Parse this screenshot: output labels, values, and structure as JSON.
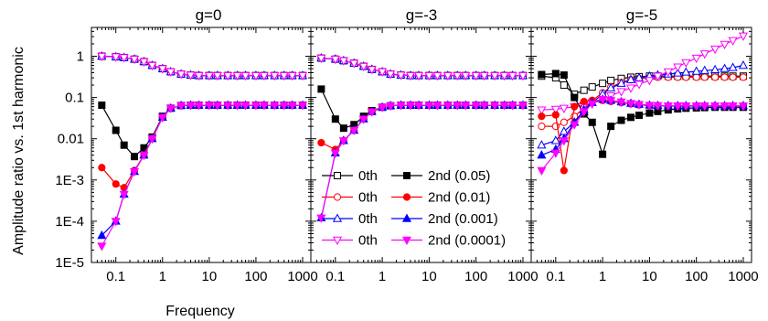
{
  "chart_data": {
    "type": "line",
    "ylabel": "Amplitude ratio vs. 1st harmonic",
    "xlabel": "Frequency",
    "xscale": "log",
    "yscale": "log",
    "xlim": [
      0.03,
      1500
    ],
    "ylim": [
      1e-05,
      5
    ],
    "xticks": [
      0.1,
      1,
      10,
      100,
      1000
    ],
    "xtick_labels": [
      "0.1",
      "1",
      "10",
      "100",
      "1000"
    ],
    "yticks": [
      1e-05,
      0.0001,
      0.001,
      0.01,
      0.1,
      1
    ],
    "ytick_labels": [
      "1E-5",
      "1E-4",
      "1E-3",
      "0.01",
      "0.1",
      "1"
    ],
    "grid": false,
    "legend_placement": "lower-left of middle panel, overlapping third panel",
    "legend": [
      {
        "zeroth_label": "0th",
        "second_label": "2nd (0.05)",
        "color": "#000000",
        "open_marker": "square",
        "filled_marker": "square"
      },
      {
        "zeroth_label": "0th",
        "second_label": "2nd (0.01)",
        "color": "#ff0000",
        "open_marker": "circle",
        "filled_marker": "circle"
      },
      {
        "zeroth_label": "0th",
        "second_label": "2nd (0.001)",
        "color": "#0000ff",
        "open_marker": "triangle-up",
        "filled_marker": "triangle-up"
      },
      {
        "zeroth_label": "0th",
        "second_label": "2nd (0.0001)",
        "color": "#ff00ff",
        "open_marker": "triangle-down",
        "filled_marker": "triangle-down"
      }
    ],
    "x": [
      0.05,
      0.1,
      0.15,
      0.25,
      0.4,
      0.6,
      1.0,
      1.5,
      2.5,
      4,
      6,
      10,
      15,
      25,
      40,
      60,
      100,
      150,
      250,
      400,
      600,
      1000
    ],
    "panels": [
      {
        "title": "g=0",
        "series": [
          {
            "kind": "zeroth",
            "color": "#000000",
            "marker": "square",
            "values": [
              1.0,
              0.97,
              0.93,
              0.85,
              0.74,
              0.6,
              0.5,
              0.42,
              0.37,
              0.35,
              0.34,
              0.34,
              0.34,
              0.34,
              0.34,
              0.34,
              0.34,
              0.34,
              0.34,
              0.34,
              0.34,
              0.34
            ]
          },
          {
            "kind": "zeroth",
            "color": "#ff0000",
            "marker": "circle",
            "values": [
              1.0,
              0.97,
              0.93,
              0.85,
              0.74,
              0.6,
              0.5,
              0.42,
              0.37,
              0.35,
              0.34,
              0.34,
              0.34,
              0.34,
              0.34,
              0.34,
              0.34,
              0.34,
              0.34,
              0.34,
              0.34,
              0.34
            ]
          },
          {
            "kind": "zeroth",
            "color": "#0000ff",
            "marker": "triangle-up",
            "values": [
              1.0,
              0.97,
              0.93,
              0.85,
              0.74,
              0.6,
              0.5,
              0.42,
              0.37,
              0.35,
              0.34,
              0.34,
              0.34,
              0.34,
              0.34,
              0.34,
              0.34,
              0.34,
              0.34,
              0.34,
              0.34,
              0.34
            ]
          },
          {
            "kind": "zeroth",
            "color": "#ff00ff",
            "marker": "triangle-down",
            "values": [
              1.0,
              0.97,
              0.93,
              0.85,
              0.74,
              0.6,
              0.5,
              0.42,
              0.37,
              0.35,
              0.34,
              0.34,
              0.34,
              0.34,
              0.34,
              0.34,
              0.34,
              0.34,
              0.34,
              0.34,
              0.34,
              0.34
            ]
          },
          {
            "kind": "second",
            "color": "#000000",
            "marker": "square",
            "values": [
              0.065,
              0.016,
              0.007,
              0.0037,
              0.006,
              0.011,
              0.035,
              0.055,
              0.064,
              0.065,
              0.065,
              0.065,
              0.065,
              0.065,
              0.065,
              0.065,
              0.065,
              0.065,
              0.065,
              0.065,
              0.065,
              0.065
            ]
          },
          {
            "kind": "second",
            "color": "#ff0000",
            "marker": "circle",
            "values": [
              0.002,
              0.0008,
              0.00065,
              0.0017,
              0.004,
              0.01,
              0.033,
              0.055,
              0.064,
              0.065,
              0.065,
              0.065,
              0.065,
              0.065,
              0.065,
              0.065,
              0.065,
              0.065,
              0.065,
              0.065,
              0.065,
              0.065
            ]
          },
          {
            "kind": "second",
            "color": "#0000ff",
            "marker": "triangle-up",
            "values": [
              4.5e-05,
              0.0001,
              0.00045,
              0.0016,
              0.004,
              0.01,
              0.033,
              0.055,
              0.064,
              0.065,
              0.065,
              0.065,
              0.065,
              0.065,
              0.065,
              0.065,
              0.065,
              0.065,
              0.065,
              0.065,
              0.065,
              0.065
            ]
          },
          {
            "kind": "second",
            "color": "#ff00ff",
            "marker": "triangle-down",
            "values": [
              2.5e-05,
              0.0001,
              0.00045,
              0.0016,
              0.004,
              0.01,
              0.033,
              0.055,
              0.064,
              0.065,
              0.065,
              0.065,
              0.065,
              0.065,
              0.065,
              0.065,
              0.065,
              0.065,
              0.065,
              0.065,
              0.065,
              0.065
            ]
          }
        ]
      },
      {
        "title": "g=-3",
        "series": [
          {
            "kind": "zeroth",
            "color": "#000000",
            "marker": "square",
            "values": [
              0.9,
              0.85,
              0.78,
              0.68,
              0.57,
              0.48,
              0.42,
              0.37,
              0.35,
              0.34,
              0.34,
              0.34,
              0.34,
              0.34,
              0.34,
              0.34,
              0.34,
              0.34,
              0.34,
              0.34,
              0.34,
              0.34
            ]
          },
          {
            "kind": "zeroth",
            "color": "#ff0000",
            "marker": "circle",
            "values": [
              0.9,
              0.85,
              0.78,
              0.68,
              0.57,
              0.48,
              0.42,
              0.37,
              0.35,
              0.34,
              0.34,
              0.34,
              0.34,
              0.34,
              0.34,
              0.34,
              0.34,
              0.34,
              0.34,
              0.34,
              0.34,
              0.34
            ]
          },
          {
            "kind": "zeroth",
            "color": "#0000ff",
            "marker": "triangle-up",
            "values": [
              0.9,
              0.85,
              0.78,
              0.68,
              0.57,
              0.48,
              0.42,
              0.37,
              0.35,
              0.34,
              0.34,
              0.34,
              0.34,
              0.34,
              0.34,
              0.34,
              0.34,
              0.34,
              0.34,
              0.34,
              0.34,
              0.34
            ]
          },
          {
            "kind": "zeroth",
            "color": "#ff00ff",
            "marker": "triangle-down",
            "values": [
              0.9,
              0.85,
              0.78,
              0.68,
              0.57,
              0.48,
              0.42,
              0.37,
              0.35,
              0.34,
              0.34,
              0.34,
              0.34,
              0.34,
              0.34,
              0.34,
              0.34,
              0.34,
              0.34,
              0.34,
              0.34,
              0.34
            ]
          },
          {
            "kind": "second",
            "color": "#000000",
            "marker": "square",
            "values": [
              0.16,
              0.03,
              0.018,
              0.022,
              0.035,
              0.048,
              0.058,
              0.063,
              0.065,
              0.065,
              0.065,
              0.065,
              0.065,
              0.065,
              0.065,
              0.065,
              0.065,
              0.065,
              0.065,
              0.065,
              0.065,
              0.065
            ]
          },
          {
            "kind": "second",
            "color": "#ff0000",
            "marker": "circle",
            "values": [
              0.008,
              0.0055,
              0.009,
              0.016,
              0.03,
              0.045,
              0.058,
              0.063,
              0.065,
              0.065,
              0.065,
              0.065,
              0.065,
              0.065,
              0.065,
              0.065,
              0.065,
              0.065,
              0.065,
              0.065,
              0.065,
              0.065
            ]
          },
          {
            "kind": "second",
            "color": "#0000ff",
            "marker": "triangle-up",
            "values": [
              0.00012,
              0.0045,
              0.009,
              0.016,
              0.03,
              0.045,
              0.058,
              0.063,
              0.065,
              0.065,
              0.065,
              0.065,
              0.065,
              0.065,
              0.065,
              0.065,
              0.065,
              0.065,
              0.065,
              0.065,
              0.065,
              0.065
            ]
          },
          {
            "kind": "second",
            "color": "#ff00ff",
            "marker": "triangle-down",
            "values": [
              0.00012,
              0.0045,
              0.009,
              0.016,
              0.03,
              0.045,
              0.058,
              0.063,
              0.065,
              0.065,
              0.065,
              0.065,
              0.065,
              0.065,
              0.065,
              0.065,
              0.065,
              0.065,
              0.065,
              0.065,
              0.065,
              0.065
            ]
          }
        ]
      },
      {
        "title": "g=-5",
        "series": [
          {
            "kind": "zeroth",
            "color": "#000000",
            "marker": "square",
            "values": [
              0.33,
              0.3,
              0.2,
              0.12,
              0.15,
              0.18,
              0.22,
              0.26,
              0.29,
              0.31,
              0.32,
              0.33,
              0.33,
              0.33,
              0.33,
              0.33,
              0.33,
              0.33,
              0.33,
              0.33,
              0.33,
              0.33
            ]
          },
          {
            "kind": "zeroth",
            "color": "#ff0000",
            "marker": "circle",
            "values": [
              0.02,
              0.02,
              0.025,
              0.035,
              0.055,
              0.085,
              0.13,
              0.18,
              0.23,
              0.27,
              0.29,
              0.3,
              0.31,
              0.31,
              0.31,
              0.31,
              0.31,
              0.31,
              0.31,
              0.31,
              0.31,
              0.31
            ]
          },
          {
            "kind": "zeroth",
            "color": "#0000ff",
            "marker": "triangle-up",
            "values": [
              0.007,
              0.009,
              0.015,
              0.025,
              0.045,
              0.075,
              0.12,
              0.17,
              0.22,
              0.27,
              0.3,
              0.33,
              0.35,
              0.37,
              0.39,
              0.41,
              0.43,
              0.45,
              0.47,
              0.5,
              0.53,
              0.6
            ]
          },
          {
            "kind": "zeroth",
            "color": "#ff00ff",
            "marker": "triangle-down",
            "values": [
              0.05,
              0.052,
              0.055,
              0.06,
              0.065,
              0.075,
              0.09,
              0.11,
              0.14,
              0.17,
              0.21,
              0.26,
              0.33,
              0.42,
              0.55,
              0.7,
              0.9,
              1.15,
              1.5,
              1.95,
              2.4,
              3.1
            ]
          },
          {
            "kind": "second",
            "color": "#000000",
            "marker": "square",
            "values": [
              0.36,
              0.38,
              0.35,
              0.1,
              0.04,
              0.025,
              0.0042,
              0.02,
              0.028,
              0.033,
              0.037,
              0.042,
              0.046,
              0.05,
              0.053,
              0.055,
              0.056,
              0.057,
              0.058,
              0.058,
              0.058,
              0.058
            ]
          },
          {
            "kind": "second",
            "color": "#ff0000",
            "marker": "circle",
            "values": [
              0.035,
              0.038,
              0.0017,
              0.06,
              0.08,
              0.085,
              0.085,
              0.08,
              0.075,
              0.07,
              0.066,
              0.064,
              0.063,
              0.062,
              0.062,
              0.062,
              0.062,
              0.062,
              0.062,
              0.062,
              0.062,
              0.062
            ]
          },
          {
            "kind": "second",
            "color": "#0000ff",
            "marker": "triangle-up",
            "values": [
              0.004,
              0.0055,
              0.01,
              0.025,
              0.05,
              0.075,
              0.09,
              0.085,
              0.078,
              0.072,
              0.068,
              0.065,
              0.064,
              0.063,
              0.063,
              0.063,
              0.063,
              0.063,
              0.063,
              0.063,
              0.063,
              0.063
            ]
          },
          {
            "kind": "second",
            "color": "#ff00ff",
            "marker": "triangle-down",
            "values": [
              0.0017,
              0.0045,
              0.009,
              0.022,
              0.045,
              0.07,
              0.09,
              0.085,
              0.078,
              0.072,
              0.068,
              0.065,
              0.064,
              0.063,
              0.063,
              0.063,
              0.063,
              0.063,
              0.063,
              0.063,
              0.063,
              0.063
            ]
          }
        ]
      }
    ]
  }
}
